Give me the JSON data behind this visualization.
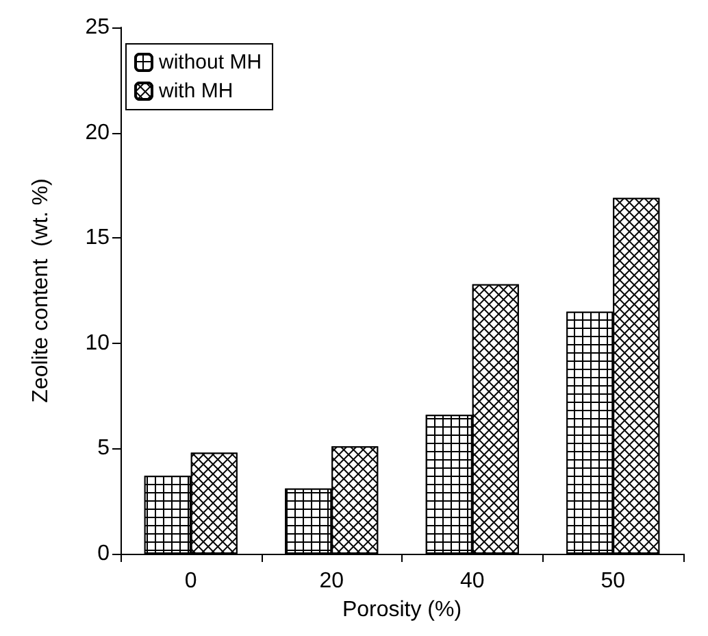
{
  "chart_data": {
    "type": "bar",
    "xlabel": "Porosity (%)",
    "ylabel": "Zeolite content  (wt. %)",
    "categories": [
      "0",
      "20",
      "40",
      "50"
    ],
    "series": [
      {
        "name": "without MH",
        "color": "#000000",
        "values": [
          3.7,
          3.1,
          6.6,
          11.5
        ]
      },
      {
        "name": "with MH",
        "color": "#000000",
        "values": [
          4.8,
          5.1,
          12.8,
          16.9
        ]
      }
    ],
    "ylim": [
      0,
      25
    ],
    "yticks": [
      0,
      5,
      10,
      15,
      20,
      25
    ],
    "grid": false,
    "legend": "top left"
  }
}
